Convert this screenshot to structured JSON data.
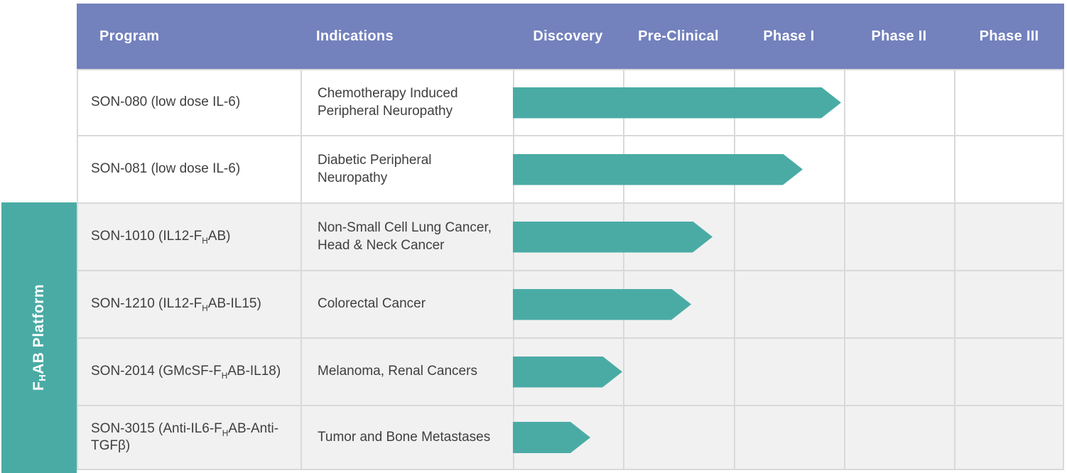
{
  "header": {
    "columns": [
      "Program",
      "Indications",
      "Discovery",
      "Pre-Clinical",
      "Phase I",
      "Phase II",
      "Phase III"
    ]
  },
  "sidebar": {
    "label": "F_{H}AB Platform"
  },
  "rows": [
    {
      "program": "SON-080 (low dose IL-6)",
      "indication": "Chemotherapy Induced Peripheral Neuropathy",
      "progress_phases": 2.98
    },
    {
      "program": "SON-081 (low dose IL-6)",
      "indication": "Diabetic Peripheral Neuropathy",
      "progress_phases": 2.63
    },
    {
      "program": "SON-1010 (IL12-F_{H}AB)",
      "indication": "Non-Small Cell Lung Cancer, Head & Neck Cancer",
      "progress_phases": 1.81
    },
    {
      "program": "SON-1210 (IL12-F_{H}AB-IL15)",
      "indication": "Colorectal Cancer",
      "progress_phases": 1.62
    },
    {
      "program": "SON-2014 (GMcSF-F_{H}AB-IL18)",
      "indication": "Melanoma, Renal Cancers",
      "progress_phases": 0.99
    },
    {
      "program": "SON-3015 (Anti-IL6-F_{H}AB-Anti-TGFβ)",
      "indication": "Tumor and Bone Metastases",
      "progress_phases": 0.7
    }
  ],
  "colors": {
    "header_bg": "#7381BD",
    "arrow_teal": "#4AABA5",
    "gridline": "#D9D9D9",
    "alt_row_bg": "#F1F1F1",
    "body_text": "#3F3F3F",
    "header_text": "#FFFFFF"
  },
  "chart_data": {
    "type": "bar",
    "orientation": "horizontal",
    "title": "Drug development pipeline",
    "phase_columns": [
      "Discovery",
      "Pre-Clinical",
      "Phase I",
      "Phase II",
      "Phase III"
    ],
    "categories": [
      "SON-080 (low dose IL-6)",
      "SON-081 (low dose IL-6)",
      "SON-1010 (IL12-FHAB)",
      "SON-1210 (IL12-FHAB-IL15)",
      "SON-2014 (GMcSF-FHAB-IL18)",
      "SON-3015 (Anti-IL6-FHAB-Anti-TGFβ)"
    ],
    "indications": [
      "Chemotherapy Induced Peripheral Neuropathy",
      "Diabetic Peripheral Neuropathy",
      "Non-Small Cell Lung Cancer, Head & Neck Cancer",
      "Colorectal Cancer",
      "Melanoma, Renal Cancers",
      "Tumor and Bone Metastases"
    ],
    "values": [
      2.98,
      2.63,
      1.81,
      1.62,
      0.99,
      0.7
    ],
    "value_units": "phases completed (1 = Discovery, 2 = Pre-Clinical, 3 = Phase I, 4 = Phase II, 5 = Phase III)",
    "xlim": [
      0,
      5
    ],
    "group_label": "FHAB Platform",
    "group_members": [
      2,
      3,
      4,
      5
    ],
    "bar_color": "#4AABA5"
  }
}
